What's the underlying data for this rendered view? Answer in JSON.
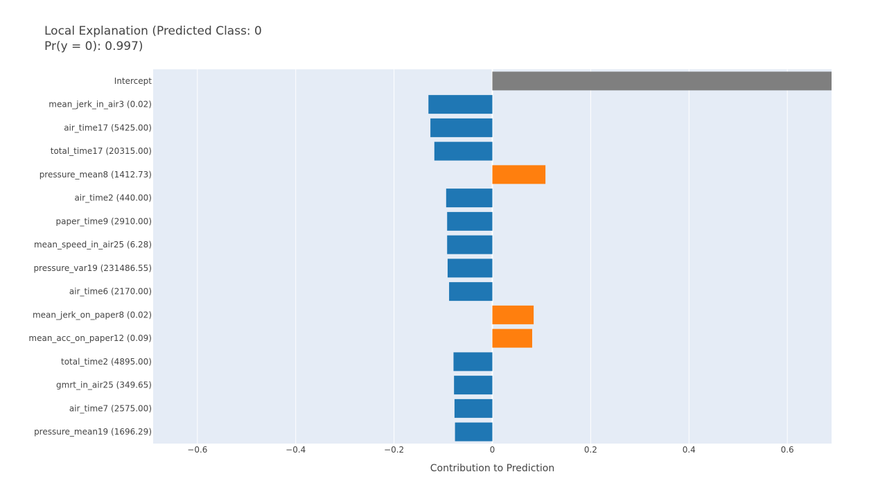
{
  "chart_data": {
    "type": "bar",
    "orientation": "horizontal",
    "title_lines": [
      "Local Explanation (Predicted Class: 0",
      "Pr(y = 0): 0.997)"
    ],
    "xlabel": "Contribution to Prediction",
    "ylabel": "",
    "xlim": [
      -0.69,
      0.69
    ],
    "x_ticks": [
      {
        "value": -0.6,
        "label": "−0.6"
      },
      {
        "value": -0.4,
        "label": "−0.4"
      },
      {
        "value": -0.2,
        "label": "−0.2"
      },
      {
        "value": 0,
        "label": "0"
      },
      {
        "value": 0.2,
        "label": "0.2"
      },
      {
        "value": 0.4,
        "label": "0.4"
      },
      {
        "value": 0.6,
        "label": "0.6"
      }
    ],
    "grid": true,
    "legend": "none",
    "colors": {
      "intercept": "#7f7f7f",
      "negative": "#1f77b4",
      "positive": "#ff7f0e",
      "plot_background": "#e5ecf6",
      "grid": "#ffffff"
    },
    "bars": [
      {
        "label": "Intercept",
        "value": 0.72,
        "kind": "intercept"
      },
      {
        "label": "mean_jerk_in_air3 (0.02)",
        "value": -0.13,
        "kind": "negative"
      },
      {
        "label": "air_time17 (5425.00)",
        "value": -0.126,
        "kind": "negative"
      },
      {
        "label": "total_time17 (20315.00)",
        "value": -0.118,
        "kind": "negative"
      },
      {
        "label": "pressure_mean8 (1412.73)",
        "value": 0.108,
        "kind": "positive"
      },
      {
        "label": "air_time2 (440.00)",
        "value": -0.094,
        "kind": "negative"
      },
      {
        "label": "paper_time9 (2910.00)",
        "value": -0.092,
        "kind": "negative"
      },
      {
        "label": "mean_speed_in_air25 (6.28)",
        "value": -0.092,
        "kind": "negative"
      },
      {
        "label": "pressure_var19 (231486.55)",
        "value": -0.091,
        "kind": "negative"
      },
      {
        "label": "air_time6 (2170.00)",
        "value": -0.088,
        "kind": "negative"
      },
      {
        "label": "mean_jerk_on_paper8 (0.02)",
        "value": 0.084,
        "kind": "positive"
      },
      {
        "label": "mean_acc_on_paper12 (0.09)",
        "value": 0.081,
        "kind": "positive"
      },
      {
        "label": "total_time2 (4895.00)",
        "value": -0.079,
        "kind": "negative"
      },
      {
        "label": "gmrt_in_air25 (349.65)",
        "value": -0.078,
        "kind": "negative"
      },
      {
        "label": "air_time7 (2575.00)",
        "value": -0.077,
        "kind": "negative"
      },
      {
        "label": "pressure_mean19 (1696.29)",
        "value": -0.076,
        "kind": "negative"
      }
    ]
  }
}
